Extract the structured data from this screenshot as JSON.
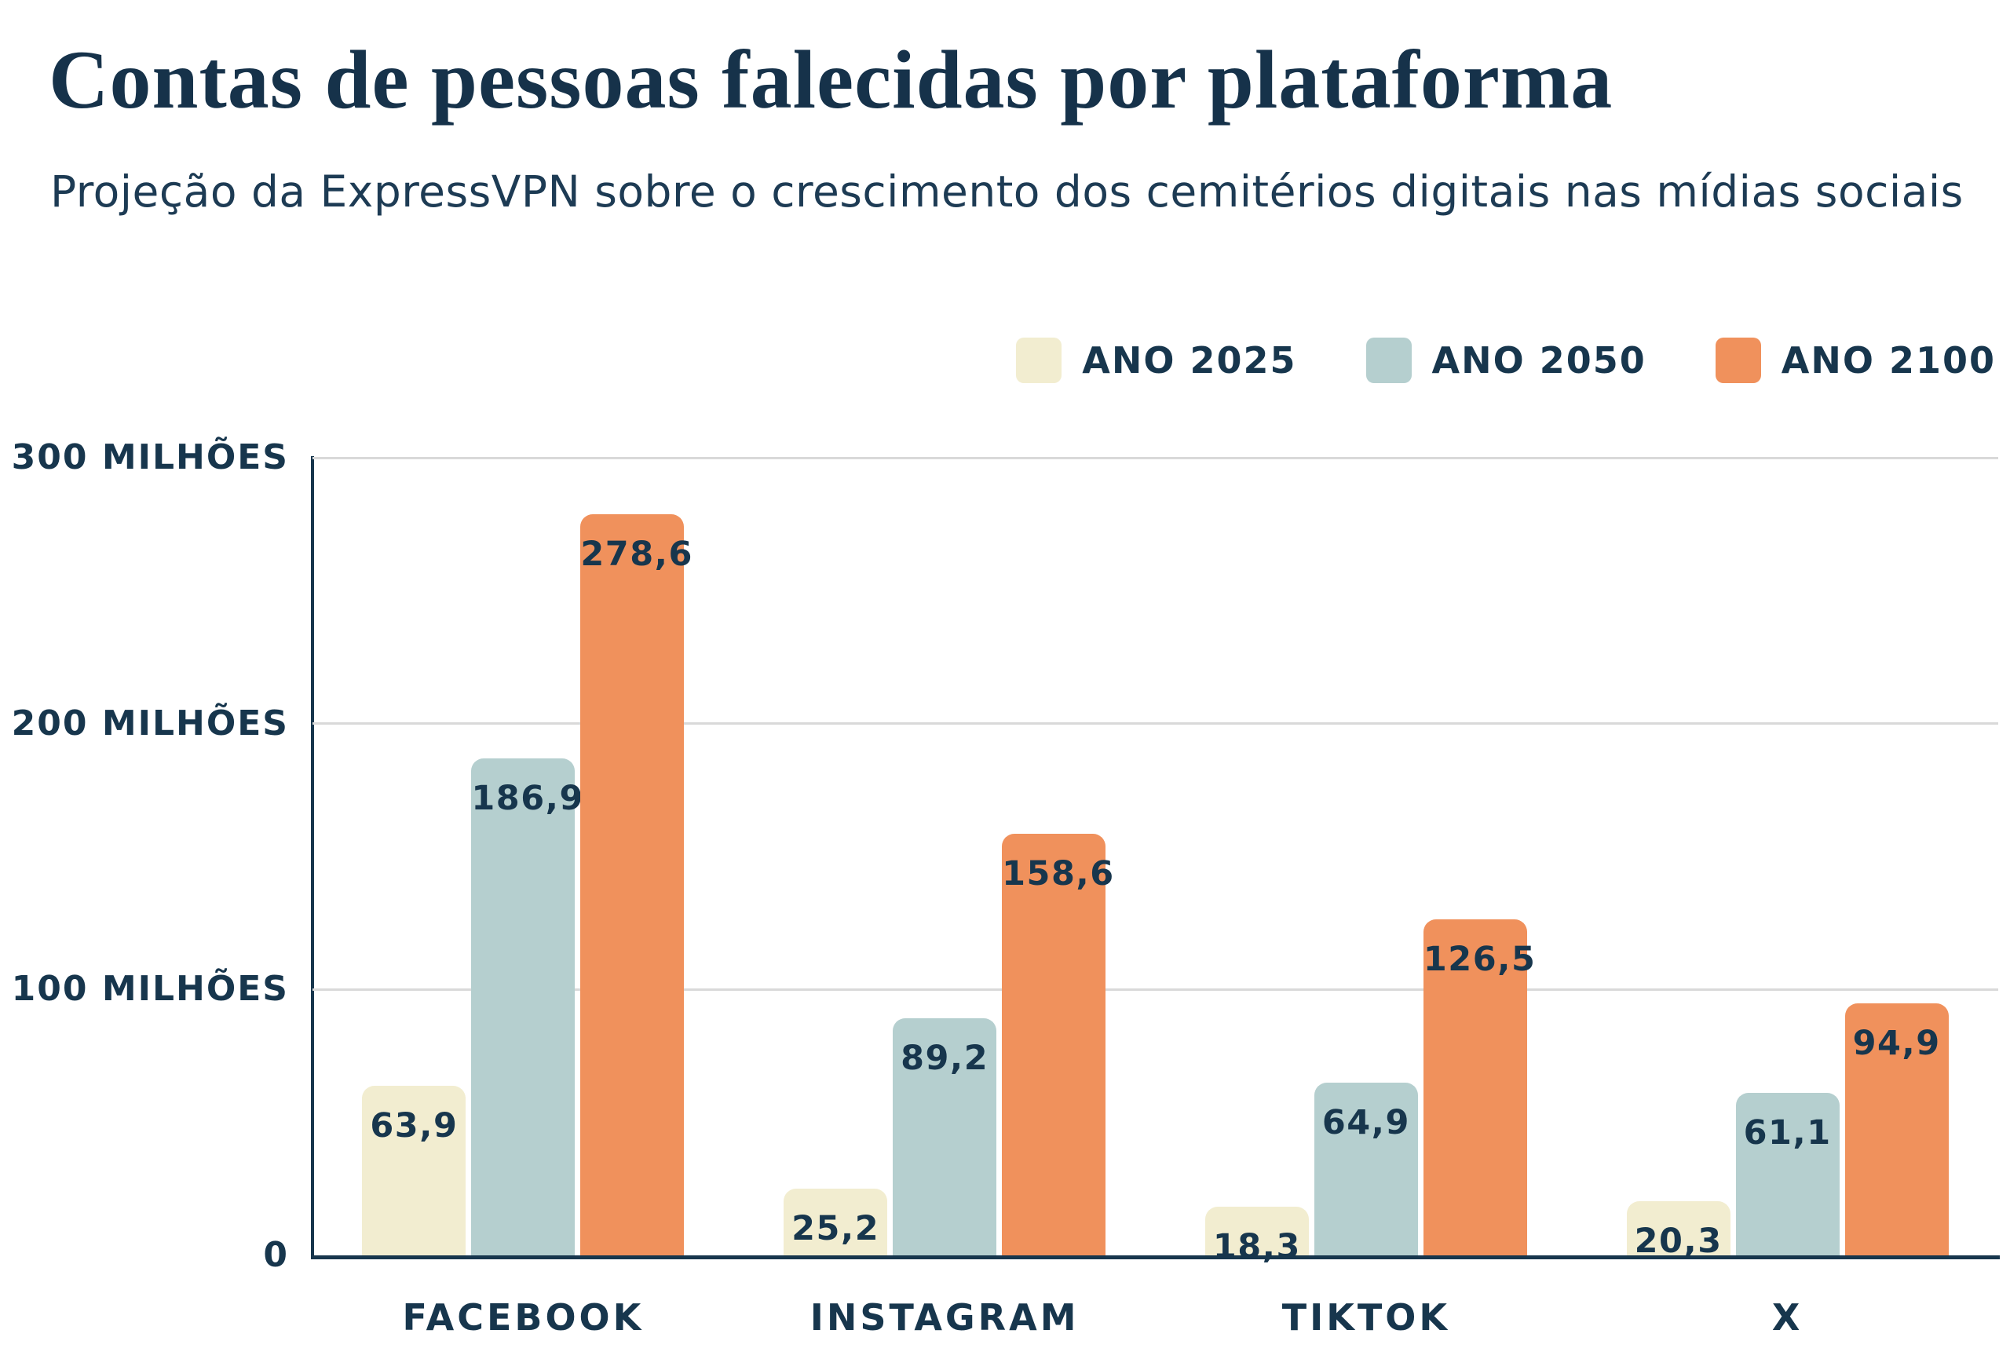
{
  "header": {
    "title": "Contas de pessoas falecidas por plataforma",
    "subtitle": "Projeção da ExpressVPN sobre o crescimento dos cemitérios digitais nas mídias sociais"
  },
  "legend": {
    "items": [
      {
        "label": "ANO 2025",
        "color": "#f2edd0"
      },
      {
        "label": "ANO 2050",
        "color": "#b5cfcf"
      },
      {
        "label": "ANO 2100",
        "color": "#f0915c"
      }
    ]
  },
  "colors": {
    "text_navy": "#17364d",
    "background": "#ffffff",
    "gridline": "#d9d9d9",
    "series_2025": "#f2edd0",
    "series_2050": "#b5cfcf",
    "series_2100": "#f0915c"
  },
  "chart_data": {
    "type": "bar",
    "title": "Contas de pessoas falecidas por plataforma",
    "subtitle": "Projeção da ExpressVPN sobre o crescimento dos cemitérios digitais nas mídias sociais",
    "categories": [
      "FACEBOOK",
      "INSTAGRAM",
      "TIKTOK",
      "X"
    ],
    "series": [
      {
        "name": "ANO 2025",
        "color": "#f2edd0",
        "values": [
          63.9,
          25.2,
          18.3,
          20.3
        ]
      },
      {
        "name": "ANO 2050",
        "color": "#b5cfcf",
        "values": [
          186.9,
          89.2,
          64.9,
          61.1
        ]
      },
      {
        "name": "ANO 2100",
        "color": "#f0915c",
        "values": [
          278.6,
          158.6,
          126.5,
          94.9
        ]
      }
    ],
    "value_labels": [
      [
        "63,9",
        "25,2",
        "18,3",
        "20,3"
      ],
      [
        "186,9",
        "89,2",
        "64,9",
        "61,1"
      ],
      [
        "278,6",
        "158,6",
        "126,5",
        "94,9"
      ]
    ],
    "y_ticks": [
      {
        "value": 0,
        "label": "0"
      },
      {
        "value": 100,
        "label": "100 MILHÕES"
      },
      {
        "value": 200,
        "label": "200 MILHÕES"
      },
      {
        "value": 300,
        "label": "300 MILHÕES"
      }
    ],
    "xlabel": "",
    "ylabel": "",
    "ylim": [
      0,
      300
    ],
    "grid": true,
    "legend_position": "top-right",
    "unit": "milhões de contas"
  }
}
